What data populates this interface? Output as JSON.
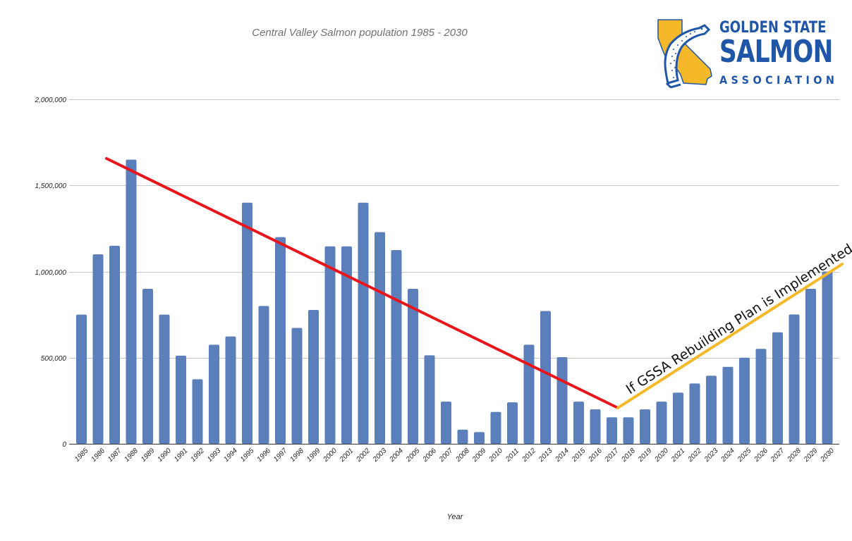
{
  "chart_data": {
    "type": "bar",
    "title": "Central Valley Salmon population 1985 - 2030",
    "xlabel": "Year",
    "ylabel": "",
    "ylim": [
      0,
      2000000
    ],
    "yticks": [
      0,
      500000,
      1000000,
      1500000,
      2000000
    ],
    "ytick_labels": [
      "0",
      "500,000",
      "1,000,000",
      "1,500,000",
      "2,000,000"
    ],
    "grid": true,
    "legend": null,
    "bar_color": "#5b7fbb",
    "categories": [
      "1985",
      "1986",
      "1987",
      "1988",
      "1989",
      "1990",
      "1991",
      "1992",
      "1993",
      "1994",
      "1995",
      "1996",
      "1997",
      "1998",
      "1999",
      "2000",
      "2001",
      "2002",
      "2003",
      "2004",
      "2005",
      "2006",
      "2007",
      "2008",
      "2009",
      "2010",
      "2011",
      "2012",
      "2013",
      "2014",
      "2015",
      "2016",
      "2017",
      "2018",
      "2019",
      "2020",
      "2021",
      "2022",
      "2023",
      "2024",
      "2025",
      "2026",
      "2027",
      "2028",
      "2029",
      "2030"
    ],
    "values": [
      750000,
      1100000,
      1150000,
      1650000,
      900000,
      750000,
      512000,
      375000,
      575000,
      623000,
      1400000,
      800000,
      1200000,
      673000,
      777000,
      1146000,
      1146000,
      1400000,
      1229000,
      1125000,
      900000,
      514000,
      245000,
      82000,
      68000,
      185000,
      241000,
      575000,
      771000,
      503000,
      245000,
      200000,
      154000,
      154000,
      200000,
      245000,
      297000,
      350000,
      395000,
      447000,
      500000,
      551000,
      647000,
      751000,
      900000,
      1000000
    ],
    "trend_lines": [
      {
        "name": "decline-trend",
        "color": "#e8151b",
        "from": {
          "x": "1987",
          "y": 1655000
        },
        "to": {
          "x": "2017",
          "y": 210000
        }
      },
      {
        "name": "rebuilding-trend",
        "color": "#f5b829",
        "from": {
          "x": "2017",
          "y": 210000
        },
        "to": {
          "x": "2030",
          "y": 1040000
        }
      }
    ],
    "annotations": [
      {
        "text": "If GSSA Rebuilding Plan is Implemented",
        "along": "rebuilding-trend"
      }
    ]
  },
  "logo": {
    "line1": "GOLDEN STATE",
    "line2": "SALMON",
    "line3": "ASSOCIATION",
    "text_color": "#1f56a8",
    "state_color": "#f5b829"
  }
}
